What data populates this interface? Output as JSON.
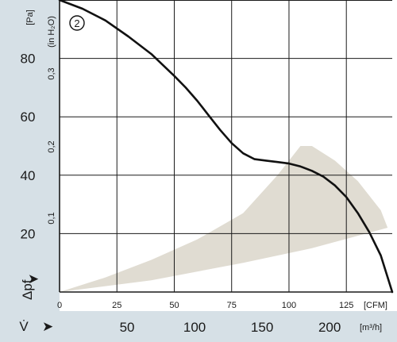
{
  "chart_data": {
    "type": "line",
    "curve_label": "2",
    "x_axes": {
      "primary": {
        "unit": "[CFM]",
        "ticks": [
          0,
          25,
          50,
          75,
          100,
          125
        ],
        "range": [
          0,
          145
        ]
      },
      "secondary": {
        "symbol": "V̇",
        "unit": "[m³/h]",
        "ticks": [
          50,
          100,
          150,
          200
        ]
      }
    },
    "y_axes": {
      "primary": {
        "symbol": "Δpf",
        "unit": "[Pa]",
        "ticks": [
          20,
          40,
          60,
          80
        ],
        "range": [
          0,
          100
        ]
      },
      "secondary": {
        "unit": "(in H₂O)",
        "ticks": [
          "0,1",
          "0,2",
          "0,3"
        ]
      }
    },
    "grid": true,
    "series": [
      {
        "x": [
          0,
          10,
          20,
          30,
          40,
          50,
          55,
          60,
          65,
          70,
          75,
          80,
          85,
          90,
          95,
          100,
          105,
          110,
          115,
          120,
          125,
          130,
          135,
          140,
          145
        ],
        "y": [
          100,
          97,
          93,
          87.5,
          81.5,
          74,
          70,
          65.5,
          60.5,
          55.5,
          51,
          47.5,
          45.5,
          45,
          44.5,
          44,
          43,
          41.5,
          39.5,
          36.5,
          32.5,
          27,
          20.5,
          12.5,
          0
        ]
      }
    ],
    "operating_region": {
      "upper": {
        "x": [
          0,
          20,
          40,
          60,
          80,
          95,
          100,
          105,
          110,
          120,
          130,
          140,
          143
        ],
        "y": [
          0,
          5,
          11,
          18,
          27,
          40,
          45,
          50,
          50,
          45,
          38,
          28,
          22
        ]
      },
      "lower": {
        "x": [
          0,
          40,
          80,
          110,
          143
        ],
        "y": [
          0,
          4,
          10,
          15,
          22
        ]
      }
    },
    "colors": {
      "curve": "#111111",
      "region": "#e0dcd2",
      "grid": "#1a1a1a",
      "panel": "#d6e0e6"
    }
  }
}
